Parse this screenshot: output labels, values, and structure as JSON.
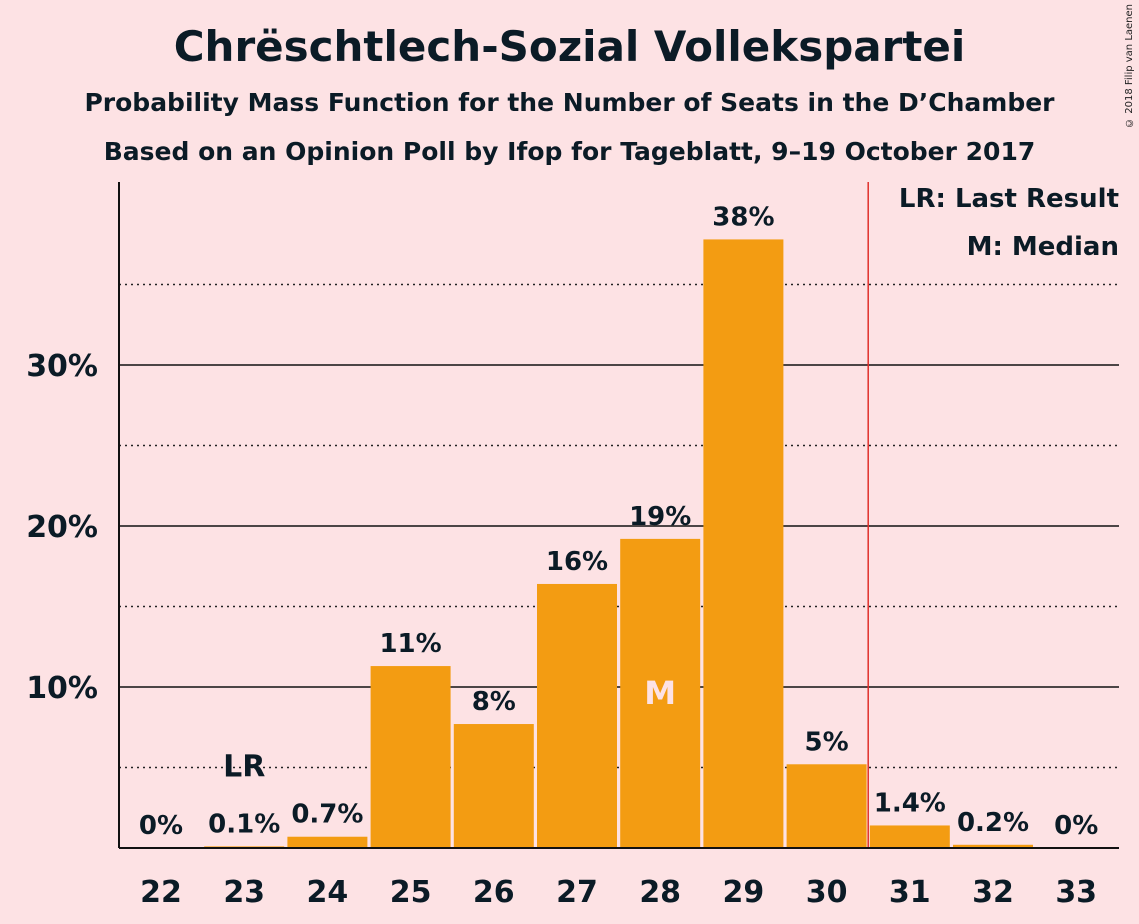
{
  "title": "Chrëschtlech-Sozial Vollekspartei",
  "subtitle1": "Probability Mass Function for the Number of Seats in the D’Chamber",
  "subtitle2": "Based on an Opinion Poll by Ifop for Tageblatt, 9–19 October 2017",
  "copyright": "© 2018 Filip van Laenen",
  "legend": {
    "last_result": "LR: Last Result",
    "median": "M: Median"
  },
  "chart_data": {
    "type": "bar",
    "categories": [
      "22",
      "23",
      "24",
      "25",
      "26",
      "27",
      "28",
      "29",
      "30",
      "31",
      "32",
      "33"
    ],
    "values": [
      0,
      0.1,
      0.7,
      11.3,
      7.7,
      16.4,
      19.2,
      37.8,
      5.2,
      1.4,
      0.2,
      0
    ],
    "value_labels": [
      "0%",
      "0.1%",
      "0.7%",
      "11%",
      "8%",
      "16%",
      "19%",
      "38%",
      "5%",
      "1.4%",
      "0.2%",
      "0%"
    ],
    "ylim": [
      0,
      41
    ],
    "yticks": [
      10,
      20,
      30
    ],
    "ytick_labels": [
      "10%",
      "20%",
      "30%"
    ],
    "dotted_gridlines": [
      5,
      15,
      25,
      35
    ],
    "last_result_category": "23",
    "last_result_label": "LR",
    "median_category": "28",
    "median_label": "M",
    "majority_line_after": "30",
    "colors": {
      "bar": "#f39c12",
      "majority_line": "#e0302a",
      "background": "#fde2e4",
      "text": "#0b1b26"
    }
  }
}
